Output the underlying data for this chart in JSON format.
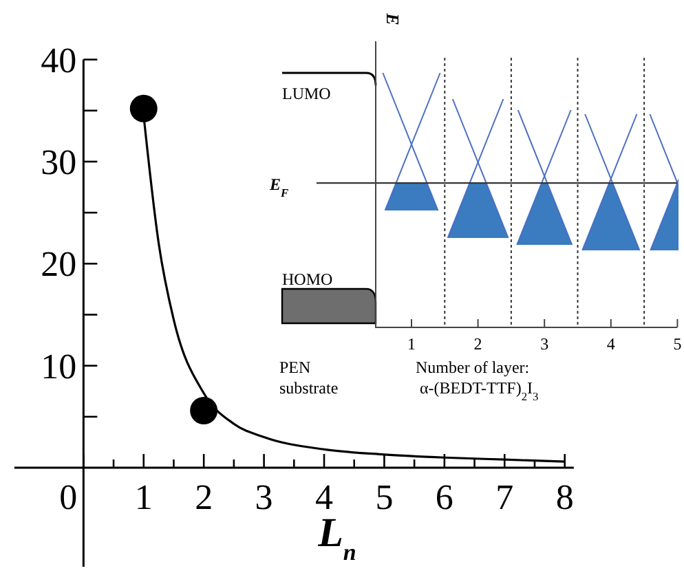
{
  "chart_data": {
    "type": "scatter",
    "xlabel": "L$_{n}$",
    "xlim": [
      -1.15,
      8.15
    ],
    "ylim": [
      -9.7,
      40
    ],
    "xticks": [
      0,
      {
        "value": 0.5,
        "label": null
      },
      1,
      {
        "value": 1.5,
        "label": null
      },
      2,
      {
        "value": 2.5,
        "label": null
      },
      3,
      {
        "value": 3.5,
        "label": null
      },
      4,
      {
        "value": 4.5,
        "label": null
      },
      5,
      {
        "value": 5.5,
        "label": null
      },
      6,
      {
        "value": 6.5,
        "label": null
      },
      7,
      {
        "value": 7.5,
        "label": null
      },
      8
    ],
    "yticks": [
      {
        "value": 5,
        "label": null
      },
      10,
      {
        "value": 15,
        "label": null
      },
      20,
      {
        "value": 25,
        "label": null
      },
      30,
      {
        "value": 35,
        "label": null
      },
      40
    ],
    "series": [
      {
        "type": "scatter",
        "marker": "circle",
        "color": "#000000",
        "x": [
          1,
          2
        ],
        "values": [
          35.2,
          5.6
        ]
      },
      {
        "type": "line",
        "marker": "none",
        "line_style": "solid",
        "color": "#000000",
        "x": [
          1,
          1.25,
          1.5,
          2,
          2.5,
          3,
          4,
          5,
          6,
          7,
          8
        ],
        "values": [
          34.5,
          22,
          14.5,
          7.3,
          4.3,
          3,
          1.8,
          1.3,
          1,
          0.8,
          0.6
        ]
      }
    ],
    "annotations": [
      "E",
      "LUMO",
      "HOMO",
      "E$_{F}$",
      "PEN\nsubstrate",
      "Number of layer:\n   α-(BEDT-TTF)$_{2}$I$_{3}$",
      "1",
      "2",
      "3",
      "4",
      "5"
    ]
  }
}
